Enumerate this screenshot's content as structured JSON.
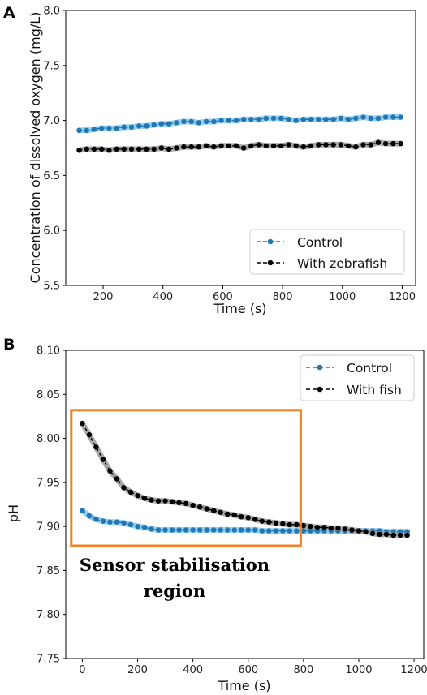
{
  "panels": [
    {
      "panel_label": "A",
      "chart_data": {
        "type": "line",
        "xlabel": "Time (s)",
        "ylabel": "Concentration of dissolved oxygen (mg/L)",
        "xlim": [
          75,
          1245
        ],
        "ylim": [
          5.5,
          8.0
        ],
        "xticks": [
          200,
          400,
          600,
          800,
          1000,
          1200
        ],
        "xtick_labels": [
          "200",
          "400",
          "600",
          "800",
          "1000",
          "1200"
        ],
        "yticks": [
          5.5,
          6.0,
          6.5,
          7.0,
          7.5,
          8.0
        ],
        "ytick_labels": [
          "5.5",
          "6.0",
          "6.5",
          "7.0",
          "7.5",
          "8.0"
        ],
        "grid": false,
        "legend_position": "bottom-right",
        "x": [
          120,
          145,
          170,
          195,
          220,
          245,
          270,
          295,
          320,
          345,
          370,
          395,
          420,
          445,
          470,
          495,
          520,
          545,
          570,
          595,
          620,
          645,
          670,
          695,
          720,
          745,
          770,
          795,
          820,
          845,
          870,
          895,
          920,
          945,
          970,
          995,
          1020,
          1045,
          1070,
          1095,
          1120,
          1145,
          1170,
          1195
        ],
        "series": [
          {
            "name": "Control",
            "color": "#1f77b4",
            "values": [
              6.91,
              6.91,
              6.92,
              6.93,
              6.93,
              6.93,
              6.94,
              6.94,
              6.95,
              6.95,
              6.96,
              6.97,
              6.97,
              6.98,
              6.99,
              6.99,
              6.98,
              6.99,
              6.99,
              7.0,
              7.0,
              7.0,
              7.01,
              7.01,
              7.01,
              7.02,
              7.02,
              7.02,
              7.01,
              7.0,
              7.01,
              7.01,
              7.01,
              7.01,
              7.01,
              7.02,
              7.01,
              7.02,
              7.03,
              7.02,
              7.02,
              7.03,
              7.03,
              7.03
            ]
          },
          {
            "name": "With zebrafish",
            "color": "#000000",
            "values": [
              6.73,
              6.74,
              6.74,
              6.74,
              6.73,
              6.74,
              6.74,
              6.74,
              6.74,
              6.74,
              6.74,
              6.75,
              6.74,
              6.75,
              6.76,
              6.76,
              6.76,
              6.77,
              6.76,
              6.77,
              6.77,
              6.77,
              6.75,
              6.77,
              6.78,
              6.77,
              6.77,
              6.77,
              6.78,
              6.77,
              6.76,
              6.77,
              6.78,
              6.78,
              6.78,
              6.78,
              6.77,
              6.76,
              6.78,
              6.78,
              6.8,
              6.79,
              6.79,
              6.79
            ]
          }
        ]
      }
    },
    {
      "panel_label": "B",
      "chart_data": {
        "type": "line",
        "xlabel": "Time (s)",
        "ylabel": "pH",
        "xlim": [
          -60,
          1235
        ],
        "ylim": [
          7.75,
          8.1
        ],
        "xticks": [
          0,
          200,
          400,
          600,
          800,
          1000,
          1200
        ],
        "xtick_labels": [
          "0",
          "200",
          "400",
          "600",
          "800",
          "1000",
          "1200"
        ],
        "yticks": [
          7.75,
          7.8,
          7.85,
          7.9,
          7.95,
          8.0,
          8.05,
          8.1
        ],
        "ytick_labels": [
          "7.75",
          "7.80",
          "7.85",
          "7.90",
          "7.95",
          "8.00",
          "8.05",
          "8.10"
        ],
        "grid": false,
        "legend_position": "top-right",
        "x": [
          0,
          25,
          50,
          75,
          100,
          125,
          150,
          175,
          200,
          225,
          250,
          275,
          300,
          325,
          350,
          375,
          400,
          425,
          450,
          475,
          500,
          525,
          550,
          575,
          600,
          625,
          650,
          675,
          700,
          725,
          750,
          775,
          800,
          825,
          850,
          875,
          900,
          925,
          950,
          975,
          1000,
          1025,
          1050,
          1075,
          1100,
          1125,
          1150,
          1175
        ],
        "series": [
          {
            "name": "Control",
            "color": "#1f77b4",
            "values": [
              7.918,
              7.912,
              7.908,
              7.906,
              7.905,
              7.905,
              7.904,
              7.902,
              7.9,
              7.899,
              7.897,
              7.896,
              7.896,
              7.896,
              7.896,
              7.896,
              7.896,
              7.896,
              7.896,
              7.896,
              7.896,
              7.896,
              7.896,
              7.896,
              7.896,
              7.896,
              7.895,
              7.895,
              7.895,
              7.895,
              7.895,
              7.895,
              7.895,
              7.895,
              7.895,
              7.895,
              7.895,
              7.895,
              7.895,
              7.895,
              7.895,
              7.895,
              7.895,
              7.895,
              7.894,
              7.894,
              7.894,
              7.894
            ]
          },
          {
            "name": "With fish",
            "color": "#000000",
            "values": [
              8.017,
              8.004,
              7.99,
              7.976,
              7.963,
              7.954,
              7.944,
              7.939,
              7.935,
              7.932,
              7.93,
              7.929,
              7.929,
              7.928,
              7.927,
              7.926,
              7.924,
              7.922,
              7.92,
              7.918,
              7.916,
              7.914,
              7.913,
              7.911,
              7.91,
              7.908,
              7.906,
              7.905,
              7.904,
              7.903,
              7.902,
              7.902,
              7.901,
              7.9,
              7.899,
              7.899,
              7.898,
              7.898,
              7.897,
              7.896,
              7.895,
              7.894,
              7.892,
              7.891,
              7.891,
              7.89,
              7.89,
              7.89
            ]
          }
        ],
        "annotation": {
          "text_lines": [
            "Sensor stabilisation",
            "region"
          ],
          "box_x": [
            -40,
            790
          ],
          "box_y": [
            7.878,
            8.032
          ],
          "box_color": "#f08224"
        }
      }
    }
  ]
}
